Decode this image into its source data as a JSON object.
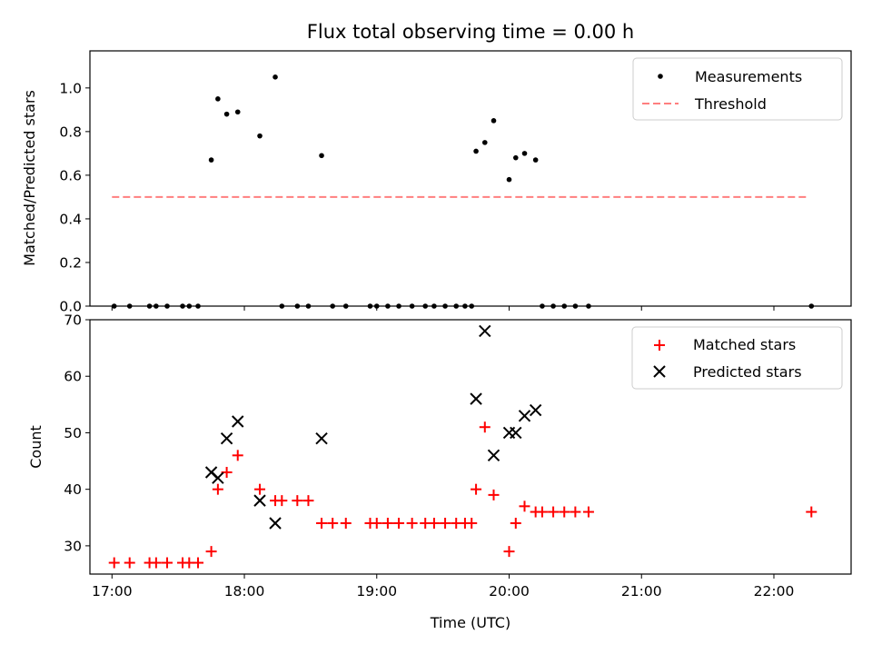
{
  "chart_data": [
    {
      "type": "scatter",
      "title": "Flux total observing time = 0.00 h",
      "xlabel": "",
      "ylabel": "Matched/Predicted stars",
      "xlim": [
        1010,
        1355
      ],
      "ylim": [
        0,
        1.17
      ],
      "yticks": [
        0,
        0.2,
        0.4,
        0.6,
        0.8,
        1.0
      ],
      "ytick_labels": [
        "0.0",
        "0.2",
        "0.4",
        "0.6",
        "0.8",
        "1.0"
      ],
      "xticks": [
        1020,
        1080,
        1140,
        1200,
        1260,
        1320
      ],
      "grid": false,
      "legend_position": "top-right",
      "series": [
        {
          "name": "Measurements",
          "marker": "dot",
          "color": "#000000",
          "x": [
            1021,
            1028,
            1037,
            1040,
            1045,
            1052,
            1055,
            1059,
            1065,
            1068,
            1072,
            1077,
            1087,
            1094,
            1097,
            1104,
            1109,
            1115,
            1120,
            1126,
            1137,
            1140,
            1145,
            1150,
            1156,
            1162,
            1166,
            1171,
            1176,
            1180,
            1183,
            1185,
            1189,
            1193,
            1200,
            1203,
            1207,
            1212,
            1215,
            1220,
            1225,
            1230,
            1236,
            1337
          ],
          "y": [
            0,
            0,
            0,
            0,
            0,
            0,
            0,
            0,
            0.67,
            0.95,
            0.88,
            0.89,
            0.78,
            1.05,
            0,
            0,
            0,
            0.69,
            0,
            0,
            0,
            0,
            0,
            0,
            0,
            0,
            0,
            0,
            0,
            0,
            0,
            0.71,
            0.75,
            0.85,
            0.58,
            0.68,
            0.7,
            0.67,
            0,
            0,
            0,
            0,
            0,
            0
          ]
        },
        {
          "name": "Threshold",
          "type": "line",
          "style": "dashed",
          "color": "#ff7f7f",
          "x": [
            1020,
            1335
          ],
          "y": [
            0.5,
            0.5
          ]
        }
      ]
    },
    {
      "type": "scatter",
      "title": "",
      "xlabel": "Time (UTC)",
      "ylabel": "Count",
      "xlim": [
        1010,
        1355
      ],
      "ylim": [
        25,
        70
      ],
      "yticks": [
        30,
        40,
        50,
        60,
        70
      ],
      "ytick_labels": [
        "30",
        "40",
        "50",
        "60",
        "70"
      ],
      "xticks": [
        1020,
        1080,
        1140,
        1200,
        1260,
        1320
      ],
      "xtick_labels": [
        "17:00",
        "18:00",
        "19:00",
        "20:00",
        "21:00",
        "22:00"
      ],
      "grid": false,
      "legend_position": "top-right",
      "series": [
        {
          "name": "Matched stars",
          "marker": "plus",
          "color": "#ff0000",
          "x": [
            1021,
            1028,
            1037,
            1040,
            1045,
            1052,
            1055,
            1059,
            1065,
            1068,
            1072,
            1077,
            1087,
            1094,
            1097,
            1104,
            1109,
            1115,
            1120,
            1126,
            1137,
            1140,
            1145,
            1150,
            1156,
            1162,
            1166,
            1171,
            1176,
            1180,
            1183,
            1185,
            1189,
            1193,
            1200,
            1203,
            1207,
            1212,
            1215,
            1220,
            1225,
            1230,
            1236,
            1337
          ],
          "y": [
            27,
            27,
            27,
            27,
            27,
            27,
            27,
            27,
            29,
            40,
            43,
            46,
            40,
            38,
            38,
            38,
            38,
            34,
            34,
            34,
            34,
            34,
            34,
            34,
            34,
            34,
            34,
            34,
            34,
            34,
            34,
            40,
            51,
            39,
            29,
            34,
            37,
            36,
            36,
            36,
            36,
            36,
            36,
            36
          ]
        },
        {
          "name": "Predicted stars",
          "marker": "x",
          "color": "#000000",
          "x": [
            1065,
            1068,
            1072,
            1077,
            1087,
            1094,
            1115,
            1185,
            1189,
            1193,
            1200,
            1203,
            1207,
            1212
          ],
          "y": [
            43,
            42,
            49,
            52,
            38,
            34,
            49,
            56,
            68,
            46,
            50,
            50,
            53,
            54
          ]
        }
      ]
    }
  ]
}
